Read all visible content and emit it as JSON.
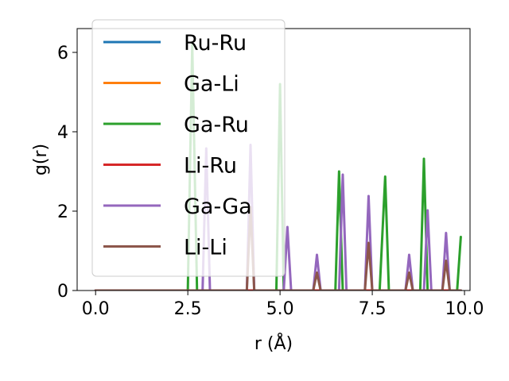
{
  "chart_data": {
    "type": "line",
    "xlabel": "r (Å)",
    "ylabel": "g(r)",
    "xlim": [
      -0.5,
      10.15
    ],
    "ylim": [
      0,
      6.6
    ],
    "xticks": [
      "0.0",
      "2.5",
      "5.0",
      "7.5",
      "10.0"
    ],
    "yticks": [
      "0",
      "2",
      "4",
      "6"
    ],
    "legend_position": "upper-left",
    "grid": false,
    "series": [
      {
        "name": "Ru-Ru",
        "color": "#1f77b4",
        "x": [
          0.0,
          9.9
        ],
        "y": [
          0.0,
          0.0
        ]
      },
      {
        "name": "Ga-Li",
        "color": "#ff7f0e",
        "x": [
          0.0,
          9.9
        ],
        "y": [
          0.0,
          0.0
        ]
      },
      {
        "name": "Ga-Ru",
        "color": "#2ca02c",
        "x": [
          0.0,
          2.5,
          2.62,
          2.75,
          4.9,
          5.0,
          5.1,
          6.5,
          6.6,
          6.7,
          7.7,
          7.85,
          7.95,
          8.8,
          8.9,
          9.0,
          9.8,
          9.9
        ],
        "y": [
          0.0,
          0.0,
          6.2,
          0.0,
          0.0,
          5.2,
          0.0,
          0.0,
          3.0,
          0.0,
          0.0,
          2.87,
          0.0,
          0.0,
          3.32,
          0.0,
          0.0,
          1.35
        ]
      },
      {
        "name": "Li-Ru",
        "color": "#d62728",
        "x": [
          0.0,
          9.9
        ],
        "y": [
          0.0,
          0.0
        ]
      },
      {
        "name": "Ga-Ga",
        "color": "#9467bd",
        "x": [
          0.0,
          2.9,
          3.0,
          3.1,
          4.1,
          4.2,
          4.3,
          5.1,
          5.2,
          5.3,
          5.9,
          6.0,
          6.1,
          6.6,
          6.7,
          6.8,
          7.3,
          7.4,
          7.5,
          8.4,
          8.5,
          8.6,
          8.9,
          9.0,
          9.1,
          9.4,
          9.5,
          9.6,
          9.9
        ],
        "y": [
          0.0,
          0.0,
          3.58,
          0.0,
          0.0,
          3.67,
          0.0,
          0.0,
          1.6,
          0.0,
          0.0,
          0.9,
          0.0,
          0.0,
          2.92,
          0.0,
          0.0,
          2.38,
          0.0,
          0.0,
          0.9,
          0.0,
          0.0,
          2.02,
          0.0,
          0.0,
          1.45,
          0.0,
          0.0
        ]
      },
      {
        "name": "Li-Li",
        "color": "#8c564b",
        "x": [
          0.0,
          4.1,
          4.2,
          4.3,
          5.9,
          6.0,
          6.1,
          7.3,
          7.4,
          7.5,
          8.4,
          8.5,
          8.6,
          9.4,
          9.5,
          9.6,
          9.9
        ],
        "y": [
          0.0,
          0.0,
          2.1,
          0.0,
          0.0,
          0.45,
          0.0,
          0.0,
          1.2,
          0.0,
          0.0,
          0.45,
          0.0,
          0.0,
          0.75,
          0.0,
          0.0
        ]
      }
    ]
  }
}
